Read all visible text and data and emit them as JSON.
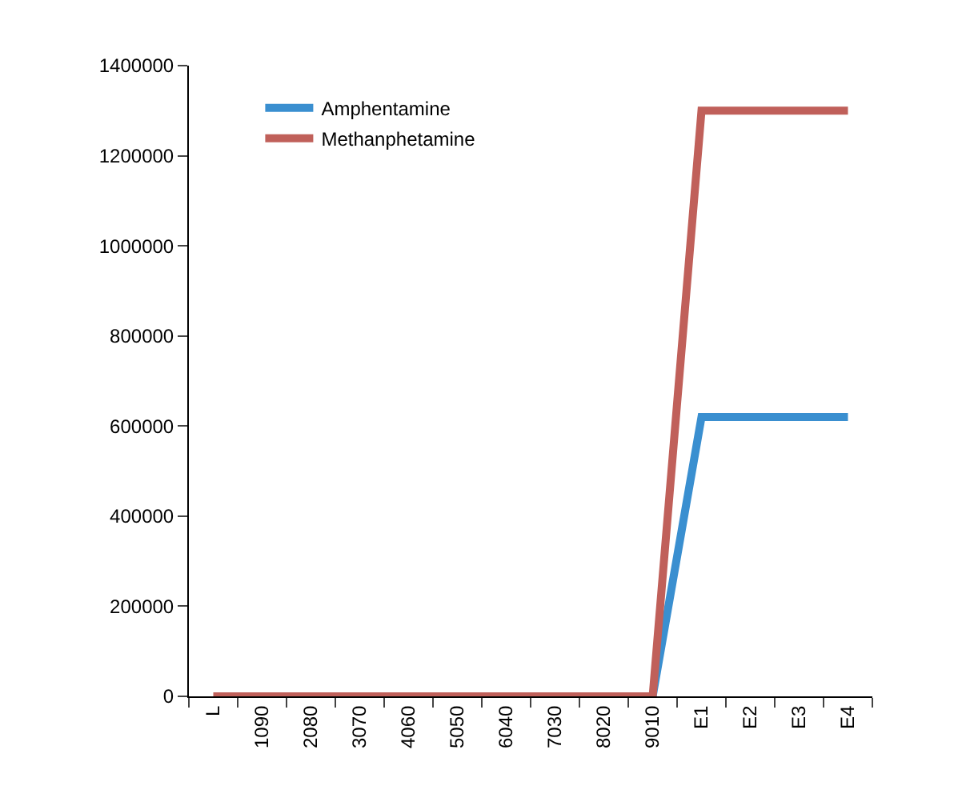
{
  "chart_data": {
    "type": "line",
    "categories": [
      "L",
      "1090",
      "2080",
      "3070",
      "4060",
      "5050",
      "6040",
      "7030",
      "8020",
      "9010",
      "E1",
      "E2",
      "E3",
      "E4"
    ],
    "series": [
      {
        "name": "Amphentamine",
        "color": "#3a8fd0",
        "values": [
          null,
          null,
          null,
          null,
          null,
          null,
          null,
          null,
          null,
          0,
          620000,
          620000,
          620000,
          620000
        ]
      },
      {
        "name": "Methanphetamine",
        "color": "#c0605a",
        "values": [
          0,
          0,
          0,
          0,
          0,
          0,
          0,
          0,
          0,
          0,
          1300000,
          1300000,
          1300000,
          1300000
        ]
      }
    ],
    "ylim": [
      0,
      1400000
    ],
    "yticks": [
      0,
      200000,
      400000,
      600000,
      800000,
      1000000,
      1200000,
      1400000
    ],
    "grid": false,
    "legend": "top left",
    "marker": "none",
    "line_style": "solid"
  }
}
